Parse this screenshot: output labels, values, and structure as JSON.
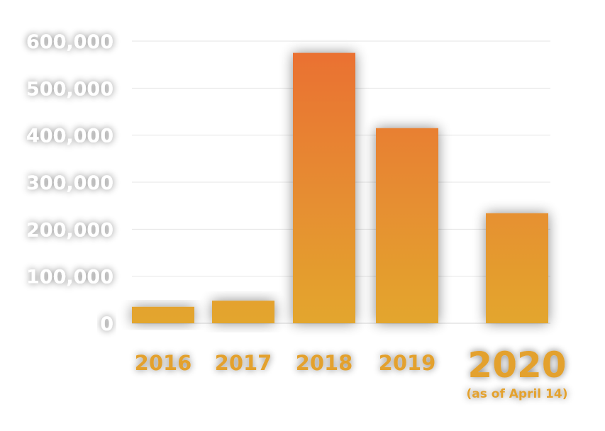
{
  "chart_data": {
    "type": "bar",
    "categories": [
      "2016",
      "2017",
      "2018",
      "2019",
      "2020"
    ],
    "category_notes": [
      "",
      "",
      "",
      "",
      "(as of April 14)"
    ],
    "values": [
      35000,
      48000,
      575000,
      415000,
      234000
    ],
    "y_ticks": [
      "0",
      "100,000",
      "200,000",
      "300,000",
      "400,000",
      "500,000",
      "600,000"
    ],
    "ylim": [
      0,
      600000
    ],
    "grid": true,
    "colors": {
      "bar_top": "#ea6f33",
      "bar_bottom": "#e3a62e",
      "category_label": "#e3a12e",
      "tick_label": "#ffffff",
      "grid": "#e4e4e4"
    }
  }
}
